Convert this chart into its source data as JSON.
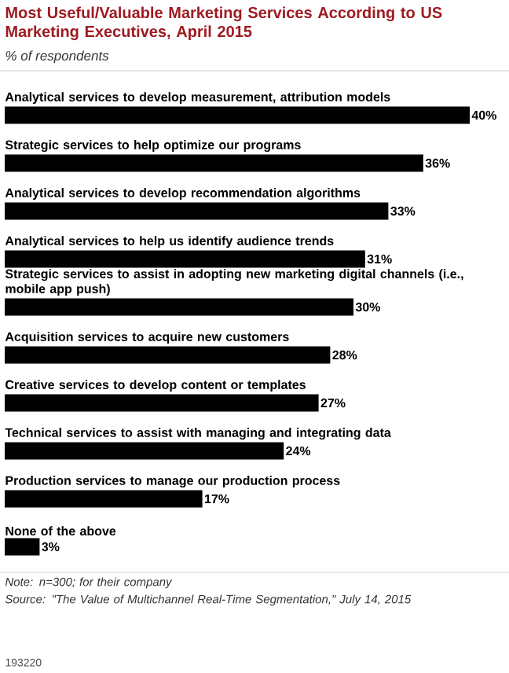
{
  "chart_data": {
    "type": "bar",
    "orientation": "horizontal",
    "title": "Most Useful/Valuable Marketing Services According to US Marketing Executives, April 2015",
    "subtitle": "% of respondents",
    "categories": [
      "Analytical services to develop measurement, attribution models",
      "Strategic services to help optimize our programs",
      "Analytical services to develop recommendation algorithms",
      "Analytical services to help us identify audience trends",
      "Strategic services to assist in adopting new marketing digital channels (i.e., mobile app push)",
      "Acquisition services to acquire new customers",
      "Creative services to develop content or templates",
      "Technical services to assist with managing and integrating data",
      "Production services to manage our production process",
      "None of the above"
    ],
    "values": [
      40,
      36,
      33,
      31,
      30,
      28,
      27,
      24,
      17,
      3
    ],
    "value_labels": [
      "40%",
      "36%",
      "33%",
      "31%",
      "30%",
      "28%",
      "27%",
      "24%",
      "17%",
      "3%"
    ],
    "color": "#000000",
    "annotations": [
      "Note: n=300; for their company",
      "Source: \"The Value of Multichannel Real-Time Segmentation,\" July 14, 2015",
      "193220"
    ]
  }
}
